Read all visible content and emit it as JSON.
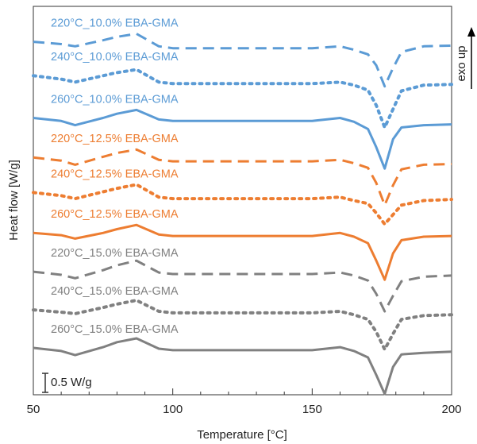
{
  "chart_data": {
    "type": "line",
    "x_label": "Temperature [°C]",
    "y_label": "Heat flow [W/g]",
    "direction_label": "exo up",
    "scale_bar": {
      "value": 0.5,
      "label": "0.5 W/g"
    },
    "xlim": [
      50,
      200
    ],
    "xticks": [
      50,
      100,
      150,
      200
    ],
    "xminorticks": [
      60,
      70,
      80,
      90,
      110,
      120,
      130,
      140,
      160,
      170,
      180,
      190
    ],
    "ylim": [
      0,
      10.2
    ],
    "x": [
      50,
      60,
      65,
      75,
      80,
      87,
      95,
      100,
      120,
      150,
      160,
      165,
      170,
      173,
      176,
      179,
      182,
      190,
      200
    ],
    "series": [
      {
        "name": "220°C_10.0% EBA-GMA",
        "color": "#5b9bd5",
        "dash": "dashed",
        "values": [
          9.27,
          9.21,
          9.15,
          9.31,
          9.4,
          9.48,
          9.15,
          9.1,
          9.1,
          9.1,
          9.15,
          9.06,
          8.94,
          8.65,
          8.1,
          8.58,
          9.0,
          9.15,
          9.17
        ]
      },
      {
        "name": "240°C_10.0% EBA-GMA",
        "color": "#5b9bd5",
        "dash": "dotted",
        "values": [
          8.38,
          8.29,
          8.21,
          8.38,
          8.46,
          8.54,
          8.21,
          8.17,
          8.17,
          8.17,
          8.21,
          8.13,
          8.0,
          7.6,
          7.02,
          7.5,
          7.98,
          8.13,
          8.15
        ]
      },
      {
        "name": "260°C_10.0% EBA-GMA",
        "color": "#5b9bd5",
        "dash": "solid",
        "values": [
          7.27,
          7.19,
          7.08,
          7.27,
          7.38,
          7.48,
          7.23,
          7.19,
          7.19,
          7.19,
          7.27,
          7.17,
          6.98,
          6.5,
          5.94,
          6.71,
          7.02,
          7.08,
          7.1
        ]
      },
      {
        "name": "220°C_12.5% EBA-GMA",
        "color": "#ed7d31",
        "dash": "dashed",
        "values": [
          6.23,
          6.15,
          6.04,
          6.25,
          6.35,
          6.44,
          6.17,
          6.13,
          6.13,
          6.13,
          6.17,
          6.08,
          5.96,
          5.56,
          4.98,
          5.5,
          5.92,
          6.04,
          6.06
        ]
      },
      {
        "name": "240°C_12.5% EBA-GMA",
        "color": "#ed7d31",
        "dash": "dotted",
        "values": [
          5.31,
          5.23,
          5.15,
          5.33,
          5.42,
          5.52,
          5.19,
          5.15,
          5.15,
          5.15,
          5.19,
          5.1,
          5.02,
          4.77,
          4.48,
          4.73,
          4.98,
          5.1,
          5.13
        ]
      },
      {
        "name": "260°C_12.5% EBA-GMA",
        "color": "#ed7d31",
        "dash": "solid",
        "values": [
          4.25,
          4.19,
          4.1,
          4.25,
          4.35,
          4.46,
          4.21,
          4.17,
          4.17,
          4.17,
          4.25,
          4.15,
          3.98,
          3.52,
          3.02,
          3.71,
          4.06,
          4.15,
          4.17
        ]
      },
      {
        "name": "220°C_15.0% EBA-GMA",
        "color": "#808080",
        "dash": "dashed",
        "values": [
          3.23,
          3.15,
          3.06,
          3.27,
          3.4,
          3.52,
          3.21,
          3.17,
          3.17,
          3.17,
          3.21,
          3.13,
          3.0,
          2.65,
          2.19,
          2.6,
          2.98,
          3.1,
          3.13
        ]
      },
      {
        "name": "240°C_15.0% EBA-GMA",
        "color": "#808080",
        "dash": "dotted",
        "values": [
          2.23,
          2.17,
          2.13,
          2.29,
          2.38,
          2.48,
          2.19,
          2.15,
          2.15,
          2.15,
          2.19,
          2.1,
          1.98,
          1.65,
          1.19,
          1.6,
          1.98,
          2.08,
          2.1
        ]
      },
      {
        "name": "260°C_15.0% EBA-GMA",
        "color": "#808080",
        "dash": "solid",
        "values": [
          1.23,
          1.15,
          1.04,
          1.25,
          1.38,
          1.48,
          1.21,
          1.17,
          1.17,
          1.17,
          1.25,
          1.15,
          0.98,
          0.52,
          0.02,
          0.73,
          1.06,
          1.1,
          1.13
        ]
      }
    ]
  }
}
